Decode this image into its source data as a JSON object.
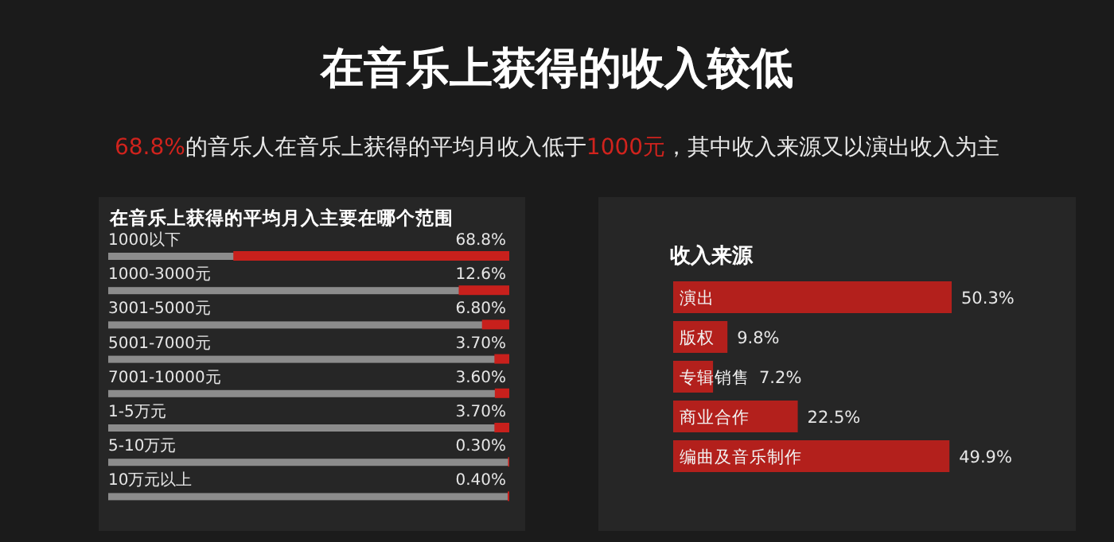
{
  "chart_data": [
    {
      "type": "other",
      "title": "在音乐上获得的收入较低",
      "subtitle": "68.8%的音乐人在音乐上获得的平均月收入低于1000元，其中收入来源又以演出收入为主"
    },
    {
      "type": "bar",
      "orientation": "horizontal",
      "title": "在音乐上获得的平均月入主要在哪个范围",
      "categories": [
        "1000以下",
        "1000-3000元",
        "3001-5000元",
        "5001-7000元",
        "7001-10000元",
        "1-5万元",
        "5-10万元",
        "10万元以上"
      ],
      "values": [
        68.8,
        12.6,
        6.8,
        3.7,
        3.6,
        3.7,
        0.3,
        0.4
      ],
      "value_labels": [
        "68.8%",
        "12.6%",
        "6.80%",
        "3.70%",
        "3.60%",
        "3.70%",
        "0.30%",
        "0.40%"
      ],
      "color": "#c8201c"
    },
    {
      "type": "bar",
      "orientation": "horizontal",
      "title": "收入来源",
      "categories": [
        "演出",
        "版权",
        "专辑销售",
        "商业合作",
        "编曲及音乐制作"
      ],
      "values": [
        50.3,
        9.8,
        7.2,
        22.5,
        49.9
      ],
      "value_labels": [
        "50.3%",
        "9.8%",
        "7.2%",
        "22.5%",
        "49.9%"
      ],
      "color": "#b3201c"
    }
  ]
}
